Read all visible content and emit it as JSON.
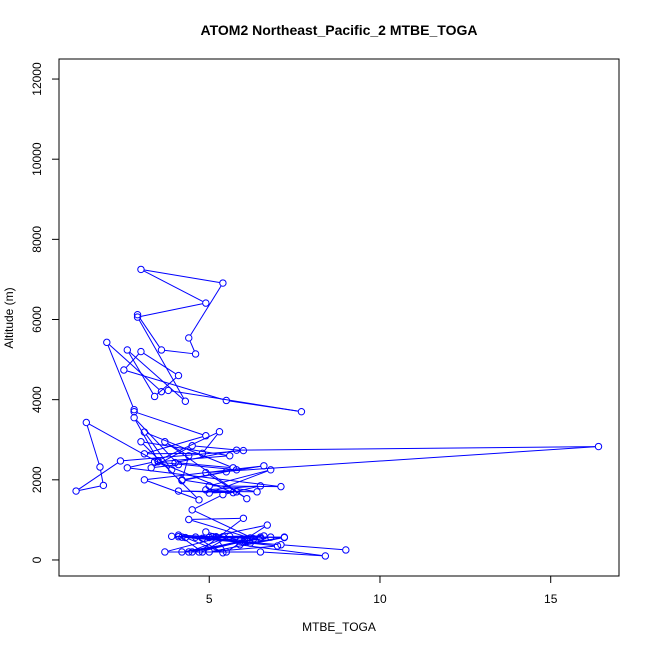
{
  "chart_data": {
    "type": "line",
    "title": "ATOM2 Northeast_Pacific_2 MTBE_TOGA",
    "xlabel": "MTBE_TOGA",
    "ylabel": "Altitude (m)",
    "xlim": [
      0.6,
      17.0
    ],
    "ylim": [
      -400,
      12500
    ],
    "xticks": [
      5,
      10,
      15
    ],
    "yticks": [
      0,
      2000,
      4000,
      6000,
      8000,
      10000,
      12000
    ],
    "grid": false,
    "marker": "open-circle",
    "colors": {
      "series": "#0000ff",
      "axes": "#000000"
    },
    "series": [
      {
        "x": [
          9.0,
          7.1,
          4.3,
          5.4,
          4.6,
          6.1,
          4.5,
          5.9,
          4.1,
          7.2,
          5.0,
          7.0,
          4.8,
          6.7,
          5.5,
          5.2,
          6.6,
          4.2,
          6.2,
          4.9,
          5.4,
          3.7,
          6.5,
          8.4,
          5.9,
          7.2,
          5.1,
          6.8,
          4.2,
          6.0,
          5.0,
          6.5,
          4.7,
          6.0,
          4.4,
          6.2,
          3.9,
          6.5,
          4.4,
          5.6,
          4.8,
          4.1,
          6.3,
          4.5,
          5.4,
          6.5,
          4.9,
          5.8,
          5.0,
          6.8,
          5.0,
          7.1,
          2.6,
          3.4,
          5.8,
          4.2,
          6.4,
          4.1,
          5.7,
          3.5,
          5.6,
          3.0,
          4.7,
          3.1,
          6.6,
          5.5,
          4.2,
          4.4,
          3.7,
          6.1,
          4.9,
          16.4,
          5.8,
          4.0,
          5.7,
          3.1,
          3.9,
          1.4,
          1.8,
          1.9,
          1.1,
          2.4,
          6.0,
          4.5,
          3.3,
          4.1,
          2.8,
          3.5,
          5.3,
          4.8,
          3.1,
          4.9,
          2.8,
          2.8,
          2.0,
          3.6,
          3.8,
          7.7,
          5.5,
          2.5,
          3.0,
          4.1,
          3.4,
          2.6,
          4.3,
          2.9,
          4.9,
          3.0,
          5.4,
          4.4,
          4.6,
          3.6,
          2.9
        ],
        "y": [
          250,
          380,
          560,
          180,
          570,
          480,
          200,
          470,
          580,
          560,
          200,
          350,
          540,
          870,
          200,
          580,
          600,
          570,
          420,
          700,
          580,
          200,
          200,
          100,
          380,
          570,
          580,
          570,
          200,
          450,
          560,
          570,
          200,
          1040,
          1010,
          550,
          590,
          540,
          200,
          590,
          200,
          620,
          530,
          1250,
          1630,
          1850,
          1750,
          1700,
          1670,
          2250,
          1850,
          1830,
          2300,
          2450,
          2250,
          2000,
          1700,
          1720,
          1680,
          2450,
          2600,
          2950,
          1500,
          2000,
          2350,
          2200,
          1980,
          2600,
          2950,
          1530,
          2180,
          2830,
          2740,
          2430,
          2300,
          3190,
          2250,
          3430,
          2320,
          1860,
          1720,
          2470,
          2730,
          2850,
          2300,
          2380,
          3550,
          2480,
          3200,
          2660,
          2650,
          3100,
          3700,
          3750,
          5430,
          4200,
          4230,
          3700,
          3980,
          4740,
          5200,
          4600,
          4080,
          5240,
          3960,
          6060,
          6410,
          7250,
          6910,
          5540,
          5140,
          5240,
          6120
        ]
      }
    ]
  }
}
